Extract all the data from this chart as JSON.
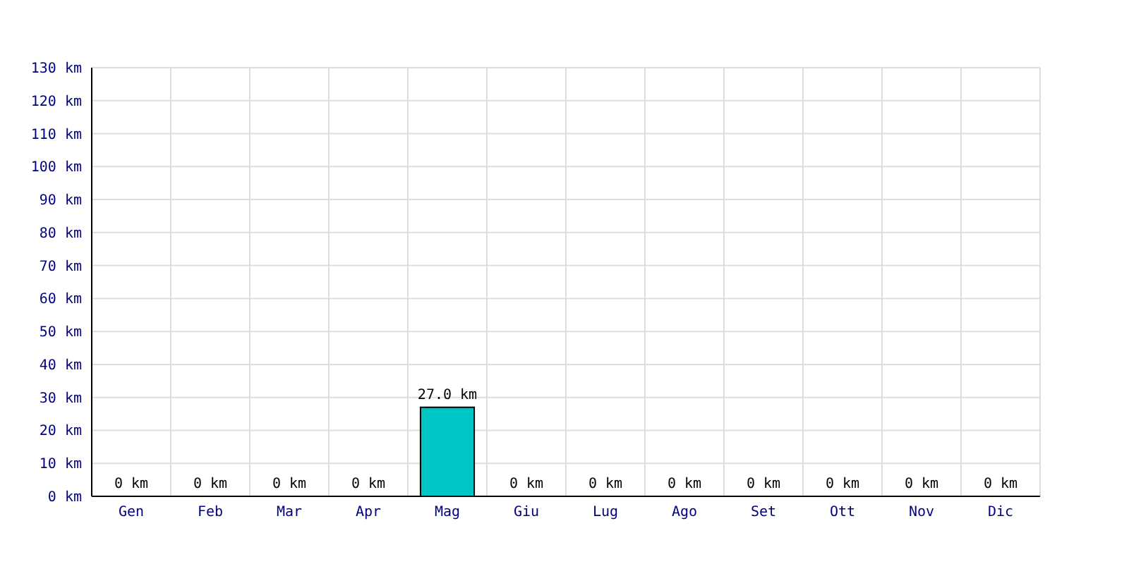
{
  "chart_data": {
    "type": "bar",
    "categories": [
      "Gen",
      "Feb",
      "Mar",
      "Apr",
      "Mag",
      "Giu",
      "Lug",
      "Ago",
      "Set",
      "Ott",
      "Nov",
      "Dic"
    ],
    "values": [
      0,
      0,
      0,
      0,
      27,
      0,
      0,
      0,
      0,
      0,
      0,
      0
    ],
    "value_labels": [
      "0 km",
      "0 km",
      "0 km",
      "0 km",
      "27.0 km",
      "0 km",
      "0 km",
      "0 km",
      "0 km",
      "0 km",
      "0 km",
      "0 km"
    ],
    "color": "#00c5c5",
    "ylim": [
      0,
      130
    ],
    "yticks": [
      {
        "value": 0,
        "label": "0 km"
      },
      {
        "value": 10,
        "label": "10 km"
      },
      {
        "value": 20,
        "label": "20 km"
      },
      {
        "value": 30,
        "label": "30 km"
      },
      {
        "value": 40,
        "label": "40 km"
      },
      {
        "value": 50,
        "label": "50 km"
      },
      {
        "value": 60,
        "label": "60 km"
      },
      {
        "value": 70,
        "label": "70 km"
      },
      {
        "value": 80,
        "label": "80 km"
      },
      {
        "value": 90,
        "label": "90 km"
      },
      {
        "value": 100,
        "label": "100 km"
      },
      {
        "value": 110,
        "label": "110 km"
      },
      {
        "value": 120,
        "label": "120 km"
      },
      {
        "value": 130,
        "label": "130 km"
      }
    ],
    "grid": true
  }
}
